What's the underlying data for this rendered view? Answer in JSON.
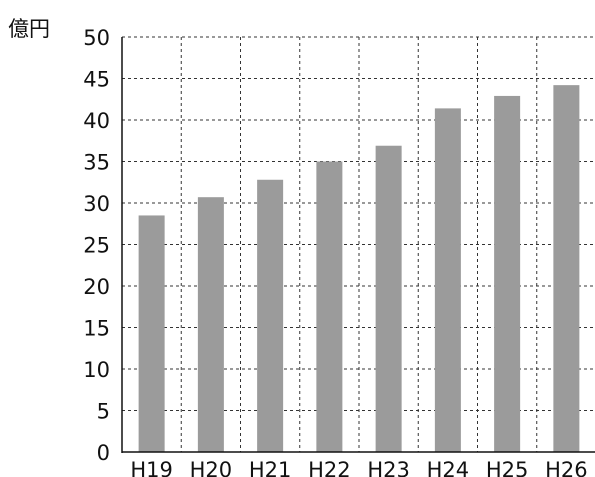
{
  "chart_data": {
    "type": "bar",
    "unit_label": "億円",
    "categories": [
      "H19",
      "H20",
      "H21",
      "H22",
      "H23",
      "H24",
      "H25",
      "H26"
    ],
    "values": [
      28.5,
      30.7,
      32.8,
      35.0,
      36.9,
      41.4,
      42.9,
      44.2
    ],
    "ylim": [
      0,
      50
    ],
    "yticks": [
      0,
      5,
      10,
      15,
      20,
      25,
      30,
      35,
      40,
      45,
      50
    ],
    "grid": true,
    "bar_color": "#9b9b9b",
    "grid_color": "#333333"
  }
}
